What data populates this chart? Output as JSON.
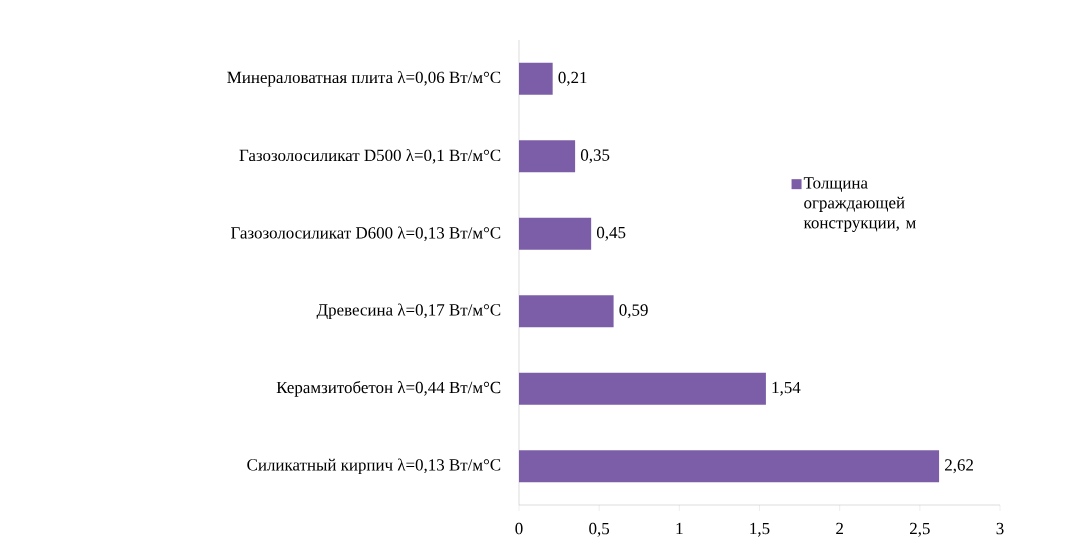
{
  "chart_data": {
    "type": "bar",
    "orientation": "horizontal",
    "categories": [
      "Минераловатная плита λ=0,06 Вт/м°С",
      "Газозолосиликат D500 λ=0,1 Вт/м°С",
      "Газозолосиликат D600 λ=0,13 Вт/м°С",
      "Древесина λ=0,17 Вт/м°С",
      "Керамзитобетон λ=0,44 Вт/м°С",
      "Силикатный кирпич λ=0,13 Вт/м°С"
    ],
    "series": [
      {
        "name": "Толщина ограждающей конструкции, м",
        "color": "#7b5ea7",
        "values": [
          0.21,
          0.35,
          0.45,
          0.59,
          1.54,
          2.62
        ],
        "value_labels": [
          "0,21",
          "0,35",
          "0,45",
          "0,59",
          "1,54",
          "2,62"
        ]
      }
    ],
    "xlim": [
      0,
      3
    ],
    "xticks": [
      0,
      {
        "value": 0.5,
        "label": "0,5"
      },
      1,
      {
        "value": 1.5,
        "label": "1,5"
      },
      2,
      {
        "value": 2.5,
        "label": "2,5"
      },
      3
    ],
    "legend": "right",
    "grid": false
  }
}
